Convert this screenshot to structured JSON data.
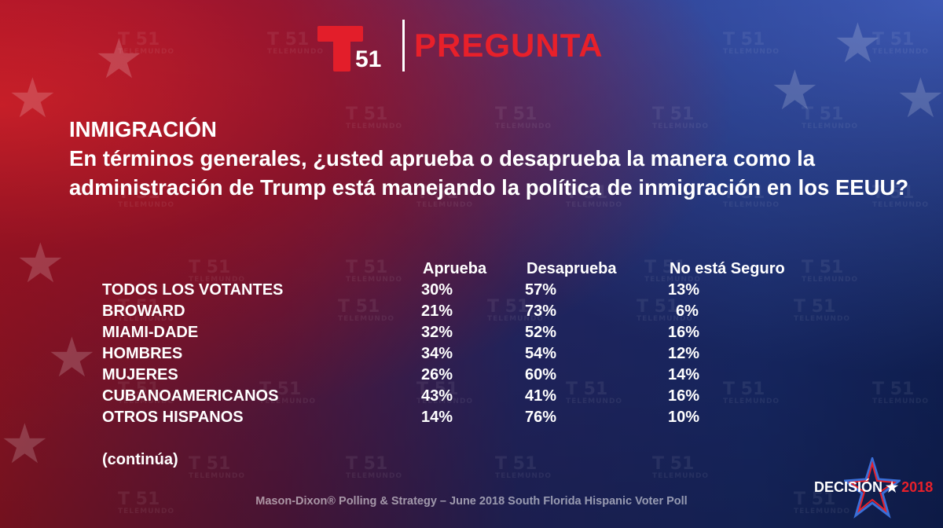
{
  "header": {
    "channel_number": "51",
    "title": "PREGUNTA",
    "logo_icon": "telemundo-t-icon",
    "brand_color": "#e31e2a"
  },
  "watermark": {
    "number": "51",
    "brand": "TELEMUNDO"
  },
  "question": {
    "topic": "INMIGRACIÓN",
    "text": "En términos generales, ¿usted aprueba o desaprueba la manera como la administración de Trump está manejando la política de inmigración en los EEUU?"
  },
  "table": {
    "headers": [
      "",
      "Aprueba",
      "Desaprueba",
      "No está Seguro"
    ],
    "rows": [
      [
        "TODOS LOS VOTANTES",
        "30%",
        "57%",
        "13%"
      ],
      [
        "BROWARD",
        "21%",
        "73%",
        "6%"
      ],
      [
        "MIAMI-DADE",
        "32%",
        "52%",
        "16%"
      ],
      [
        "HOMBRES",
        "34%",
        "54%",
        "12%"
      ],
      [
        "MUJERES",
        "26%",
        "60%",
        "14%"
      ],
      [
        "CUBANOAMERICANOS",
        "43%",
        "41%",
        "16%"
      ],
      [
        "OTROS HISPANOS",
        "14%",
        "76%",
        "10%"
      ]
    ]
  },
  "continues": "(continúa)",
  "footer": "Mason-Dixon® Polling & Strategy – June 2018 South Florida Hispanic Voter Poll",
  "badge": {
    "word": "DECISIÓN",
    "year": "2018",
    "icon": "star-icon"
  }
}
